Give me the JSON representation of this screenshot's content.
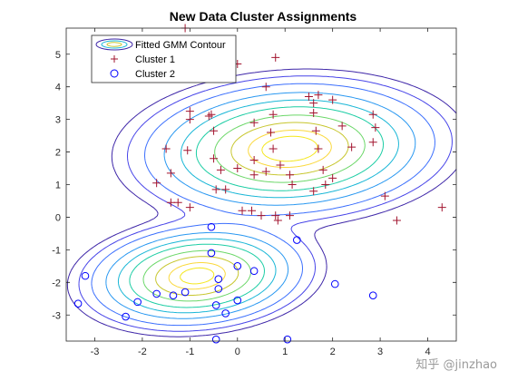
{
  "watermark": "知乎 @jinzhao",
  "chart_data": {
    "type": "scatter",
    "title": "New Data Cluster Assignments",
    "xlabel": "",
    "ylabel": "",
    "xlim": [
      -3.6,
      4.6
    ],
    "ylim": [
      -3.8,
      5.8
    ],
    "xticks": [
      "-3",
      "-2",
      "-1",
      "0",
      "1",
      "2",
      "3",
      "4"
    ],
    "yticks": [
      "-3",
      "-2",
      "-1",
      "0",
      "1",
      "2",
      "3",
      "4",
      "5"
    ],
    "grid": false,
    "legend_position": "top-left",
    "legend": [
      "Fitted GMM Contour",
      "Cluster 1",
      "Cluster 2"
    ],
    "colors": {
      "cluster1": "#a2142f",
      "cluster2": "#0000ff",
      "contours": [
        "#3e26a8",
        "#4744e8",
        "#3b6ffd",
        "#2998f1",
        "#18b6d6",
        "#1ccda4",
        "#6bd768",
        "#c7c62d",
        "#fad83c",
        "#f4e71d"
      ]
    },
    "contour_components": [
      {
        "mean": [
          -0.85,
          -1.8
        ],
        "sx": 0.95,
        "sy": 0.65,
        "rho": 0.15,
        "weight": 0.35
      },
      {
        "mean": [
          1.1,
          2.1
        ],
        "sx": 1.3,
        "sy": 0.85,
        "rho": 0.1,
        "weight": 0.65
      }
    ],
    "contour_levels": [
      0.0015,
      0.003,
      0.006,
      0.012,
      0.02,
      0.03,
      0.045,
      0.06,
      0.075,
      0.085
    ],
    "series": [
      {
        "name": "Cluster 1",
        "marker": "+",
        "points": [
          [
            -1.1,
            5.8
          ],
          [
            0.0,
            4.7
          ],
          [
            0.8,
            4.9
          ],
          [
            0.6,
            4.0
          ],
          [
            1.5,
            3.7
          ],
          [
            1.7,
            3.75
          ],
          [
            1.6,
            3.5
          ],
          [
            2.0,
            3.6
          ],
          [
            -1.0,
            3.25
          ],
          [
            -1.0,
            3.0
          ],
          [
            -0.6,
            3.1
          ],
          [
            -0.55,
            3.15
          ],
          [
            0.35,
            2.9
          ],
          [
            0.75,
            3.15
          ],
          [
            1.6,
            3.2
          ],
          [
            2.2,
            2.8
          ],
          [
            2.85,
            3.15
          ],
          [
            2.9,
            2.75
          ],
          [
            -0.5,
            2.65
          ],
          [
            -1.5,
            2.1
          ],
          [
            -1.05,
            2.05
          ],
          [
            0.7,
            2.6
          ],
          [
            0.75,
            2.1
          ],
          [
            1.65,
            2.65
          ],
          [
            1.7,
            2.1
          ],
          [
            2.4,
            2.15
          ],
          [
            2.85,
            2.3
          ],
          [
            -0.5,
            1.8
          ],
          [
            0.35,
            1.75
          ],
          [
            -1.4,
            1.35
          ],
          [
            -0.35,
            1.45
          ],
          [
            0.0,
            1.5
          ],
          [
            0.35,
            1.3
          ],
          [
            0.6,
            1.4
          ],
          [
            0.9,
            1.6
          ],
          [
            1.1,
            1.3
          ],
          [
            1.15,
            1.0
          ],
          [
            1.8,
            1.45
          ],
          [
            2.0,
            1.2
          ],
          [
            1.85,
            1.0
          ],
          [
            -1.7,
            1.05
          ],
          [
            -0.45,
            0.85
          ],
          [
            -0.25,
            0.85
          ],
          [
            1.6,
            0.8
          ],
          [
            -1.4,
            0.45
          ],
          [
            -1.25,
            0.45
          ],
          [
            -1.0,
            0.3
          ],
          [
            0.1,
            0.2
          ],
          [
            0.3,
            0.2
          ],
          [
            0.5,
            0.05
          ],
          [
            0.8,
            0.05
          ],
          [
            0.85,
            -0.1
          ],
          [
            1.1,
            0.05
          ],
          [
            3.1,
            0.65
          ],
          [
            3.35,
            -0.1
          ],
          [
            4.3,
            0.3
          ]
        ]
      },
      {
        "name": "Cluster 2",
        "marker": "o",
        "points": [
          [
            -0.55,
            -0.3
          ],
          [
            -0.55,
            -1.1
          ],
          [
            1.25,
            -0.7
          ],
          [
            0.0,
            -1.5
          ],
          [
            0.35,
            -1.65
          ],
          [
            -0.4,
            -1.9
          ],
          [
            -3.2,
            -1.8
          ],
          [
            -0.4,
            -2.2
          ],
          [
            2.05,
            -2.05
          ],
          [
            -1.35,
            -2.4
          ],
          [
            -1.1,
            -2.3
          ],
          [
            -1.7,
            -2.35
          ],
          [
            -2.1,
            -2.6
          ],
          [
            0.0,
            -2.55
          ],
          [
            -0.45,
            -2.7
          ],
          [
            -3.35,
            -2.65
          ],
          [
            -2.35,
            -3.05
          ],
          [
            -0.25,
            -2.95
          ],
          [
            2.85,
            -2.4
          ],
          [
            -0.45,
            -3.75
          ],
          [
            1.05,
            -3.75
          ]
        ]
      }
    ]
  }
}
